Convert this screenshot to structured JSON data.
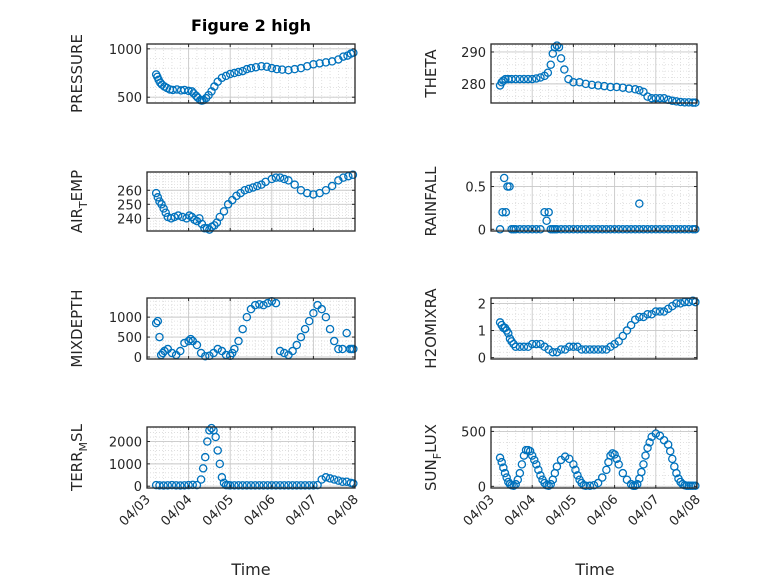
{
  "figure": {
    "title": "Figure 2 high",
    "xlabel": "Time",
    "x_tick_labels": [
      "04/03",
      "04/04",
      "04/05",
      "04/06",
      "04/07",
      "04/08"
    ],
    "marker_color": "#0072BD",
    "background": "#ffffff",
    "axes_color": "#262626"
  },
  "chart_data": [
    {
      "id": "pressure",
      "type": "scatter",
      "marker": "circle",
      "ylabel_parts": [
        "PRESSURE"
      ],
      "xlim": [
        0,
        5
      ],
      "ylim": [
        440,
        1050
      ],
      "yticks": [
        500,
        1000
      ],
      "x": [
        0.22,
        0.25,
        0.28,
        0.32,
        0.36,
        0.42,
        0.48,
        0.55,
        0.62,
        0.72,
        0.82,
        0.9,
        1.0,
        1.08,
        1.12,
        1.18,
        1.22,
        1.28,
        1.32,
        1.36,
        1.42,
        1.48,
        1.55,
        1.62,
        1.7,
        1.8,
        1.9,
        2.0,
        2.1,
        2.2,
        2.3,
        2.4,
        2.5,
        2.62,
        2.75,
        2.88,
        3.0,
        3.12,
        3.25,
        3.4,
        3.55,
        3.7,
        3.85,
        4.0,
        4.15,
        4.3,
        4.45,
        4.6,
        4.72,
        4.82,
        4.9,
        4.96
      ],
      "y": [
        735,
        710,
        680,
        650,
        630,
        610,
        595,
        580,
        575,
        580,
        570,
        575,
        565,
        560,
        540,
        515,
        495,
        470,
        465,
        470,
        490,
        520,
        560,
        610,
        660,
        700,
        720,
        740,
        750,
        760,
        770,
        790,
        800,
        810,
        820,
        815,
        800,
        790,
        785,
        780,
        790,
        800,
        820,
        840,
        850,
        860,
        870,
        890,
        920,
        930,
        950,
        960
      ]
    },
    {
      "id": "theta",
      "type": "scatter",
      "marker": "circle",
      "ylabel_parts": [
        "THETA"
      ],
      "xlim": [
        0,
        5
      ],
      "ylim": [
        274,
        292.5
      ],
      "yticks": [
        280,
        290
      ],
      "x": [
        0.22,
        0.26,
        0.3,
        0.35,
        0.42,
        0.5,
        0.6,
        0.7,
        0.8,
        0.9,
        1.0,
        1.1,
        1.2,
        1.3,
        1.38,
        1.45,
        1.5,
        1.55,
        1.6,
        1.65,
        1.7,
        1.78,
        1.88,
        2.0,
        2.15,
        2.3,
        2.45,
        2.6,
        2.75,
        2.9,
        3.05,
        3.2,
        3.35,
        3.5,
        3.6,
        3.7,
        3.8,
        3.9,
        4.0,
        4.1,
        4.2,
        4.3,
        4.4,
        4.5,
        4.6,
        4.7,
        4.8,
        4.9,
        4.96
      ],
      "y": [
        279.5,
        280.5,
        281,
        281.5,
        281.5,
        281.5,
        281.5,
        281.5,
        281.5,
        281.5,
        281.5,
        281.7,
        282,
        282.5,
        283.5,
        286,
        289.5,
        291.5,
        292,
        291.5,
        288,
        284.5,
        281.5,
        280.5,
        280.5,
        280,
        279.7,
        279.5,
        279.3,
        279,
        279,
        278.8,
        278.5,
        278.3,
        278,
        277.5,
        276,
        275.5,
        275.5,
        275.5,
        275.5,
        275,
        274.7,
        274.5,
        274.3,
        274.2,
        274.2,
        274.1,
        274.1
      ]
    },
    {
      "id": "air_temp",
      "type": "scatter",
      "marker": "circle",
      "ylabel_parts": [
        "AIR",
        "T",
        "EMP"
      ],
      "xlim": [
        0,
        5
      ],
      "ylim": [
        231,
        273
      ],
      "yticks": [
        240,
        250,
        260
      ],
      "x": [
        0.22,
        0.26,
        0.3,
        0.35,
        0.4,
        0.45,
        0.5,
        0.58,
        0.66,
        0.75,
        0.85,
        0.95,
        1.02,
        1.08,
        1.14,
        1.2,
        1.26,
        1.32,
        1.38,
        1.44,
        1.5,
        1.56,
        1.62,
        1.68,
        1.75,
        1.85,
        1.95,
        2.05,
        2.15,
        2.25,
        2.35,
        2.45,
        2.55,
        2.65,
        2.75,
        2.85,
        3.0,
        3.1,
        3.2,
        3.3,
        3.4,
        3.55,
        3.7,
        3.85,
        4.0,
        4.15,
        4.3,
        4.45,
        4.6,
        4.72,
        4.84,
        4.95
      ],
      "y": [
        258,
        255,
        252,
        250,
        247,
        244,
        241,
        240,
        241,
        242,
        241,
        240,
        242,
        241,
        239,
        238,
        240,
        236,
        233,
        233,
        232,
        234,
        235,
        237,
        241,
        245,
        250,
        253,
        256,
        258,
        260,
        261,
        262,
        263,
        264,
        266,
        268,
        269,
        269,
        268,
        267,
        264,
        260,
        258,
        257,
        258,
        260,
        263,
        267,
        269,
        270,
        271
      ]
    },
    {
      "id": "rainfall",
      "type": "scatter",
      "marker": "circle",
      "ylabel_parts": [
        "RAINFALL"
      ],
      "xlim": [
        0,
        5
      ],
      "ylim": [
        -0.02,
        0.67
      ],
      "yticks": [
        0,
        0.5
      ],
      "x": [
        0.22,
        0.28,
        0.32,
        0.36,
        0.4,
        0.45,
        0.5,
        0.55,
        0.6,
        0.7,
        0.8,
        0.9,
        1.0,
        1.1,
        1.2,
        1.3,
        1.35,
        1.4,
        1.45,
        1.5,
        1.55,
        1.6,
        1.7,
        1.8,
        1.9,
        2.0,
        2.1,
        2.2,
        2.3,
        2.4,
        2.5,
        2.6,
        2.7,
        2.8,
        2.9,
        3.0,
        3.1,
        3.2,
        3.3,
        3.4,
        3.5,
        3.6,
        3.7,
        3.8,
        3.9,
        4.0,
        4.1,
        4.2,
        4.3,
        4.4,
        4.5,
        4.6,
        4.7,
        4.8,
        4.9,
        4.96
      ],
      "y": [
        0,
        0.2,
        0.6,
        0.2,
        0.5,
        0.5,
        0,
        0,
        0,
        0,
        0,
        0,
        0,
        0,
        0,
        0.2,
        0.1,
        0.2,
        0,
        0,
        0,
        0,
        0,
        0,
        0,
        0,
        0,
        0,
        0,
        0,
        0,
        0,
        0,
        0,
        0,
        0,
        0,
        0,
        0,
        0,
        0,
        0,
        0,
        0,
        0,
        0,
        0,
        0,
        0,
        0,
        0,
        0,
        0,
        0,
        0,
        0
      ],
      "x_extra": [
        3.6
      ],
      "y_extra": [
        0.3
      ]
    },
    {
      "id": "mixdepth",
      "type": "scatter",
      "marker": "circle",
      "ylabel_parts": [
        "MIXDEPTH"
      ],
      "xlim": [
        0,
        5
      ],
      "ylim": [
        -50,
        1480
      ],
      "yticks": [
        0,
        500,
        1000
      ],
      "x": [
        0.22,
        0.26,
        0.3,
        0.34,
        0.38,
        0.42,
        0.5,
        0.6,
        0.7,
        0.8,
        0.9,
        1.0,
        1.05,
        1.1,
        1.2,
        1.3,
        1.4,
        1.5,
        1.6,
        1.7,
        1.8,
        1.9,
        2.0,
        2.05,
        2.1,
        2.2,
        2.3,
        2.4,
        2.5,
        2.6,
        2.7,
        2.8,
        2.9,
        3.0,
        3.1,
        3.2,
        3.3,
        3.4,
        3.5,
        3.6,
        3.7,
        3.8,
        3.9,
        4.0,
        4.1,
        4.2,
        4.3,
        4.4,
        4.5,
        4.6,
        4.7,
        4.8,
        4.88,
        4.92,
        4.96
      ],
      "y": [
        850,
        900,
        500,
        50,
        100,
        150,
        200,
        100,
        50,
        150,
        350,
        400,
        450,
        400,
        300,
        100,
        20,
        30,
        100,
        200,
        150,
        50,
        30,
        100,
        200,
        400,
        700,
        1000,
        1200,
        1300,
        1320,
        1300,
        1350,
        1400,
        1350,
        150,
        100,
        50,
        150,
        300,
        500,
        700,
        900,
        1100,
        1300,
        1200,
        1000,
        700,
        400,
        200,
        200,
        600,
        200,
        200,
        200
      ]
    },
    {
      "id": "h2omixra",
      "type": "scatter",
      "marker": "circle",
      "ylabel_parts": [
        "H2OMIXRA"
      ],
      "xlim": [
        0,
        5
      ],
      "ylim": [
        -0.05,
        2.2
      ],
      "yticks": [
        0,
        1,
        2
      ],
      "x": [
        0.22,
        0.26,
        0.3,
        0.34,
        0.38,
        0.42,
        0.46,
        0.5,
        0.55,
        0.6,
        0.7,
        0.8,
        0.9,
        1.0,
        1.1,
        1.2,
        1.3,
        1.4,
        1.5,
        1.6,
        1.7,
        1.8,
        1.9,
        2.0,
        2.1,
        2.2,
        2.3,
        2.4,
        2.5,
        2.6,
        2.7,
        2.8,
        2.9,
        3.0,
        3.1,
        3.2,
        3.3,
        3.4,
        3.5,
        3.6,
        3.7,
        3.8,
        3.9,
        4.0,
        4.1,
        4.2,
        4.3,
        4.4,
        4.5,
        4.6,
        4.7,
        4.8,
        4.9,
        4.96
      ],
      "y": [
        1.3,
        1.2,
        1.1,
        1.1,
        1.0,
        0.9,
        0.7,
        0.6,
        0.5,
        0.4,
        0.4,
        0.4,
        0.4,
        0.5,
        0.5,
        0.5,
        0.4,
        0.3,
        0.2,
        0.2,
        0.3,
        0.3,
        0.4,
        0.4,
        0.4,
        0.3,
        0.3,
        0.3,
        0.3,
        0.3,
        0.3,
        0.3,
        0.4,
        0.5,
        0.6,
        0.8,
        1.0,
        1.2,
        1.4,
        1.5,
        1.5,
        1.6,
        1.6,
        1.7,
        1.7,
        1.7,
        1.8,
        1.9,
        2.0,
        2.0,
        2.05,
        2.05,
        2.1,
        2.05
      ]
    },
    {
      "id": "terr_msl",
      "type": "scatter",
      "marker": "circle",
      "ylabel_parts": [
        "TERR",
        "M",
        "SL"
      ],
      "xlim": [
        0,
        5
      ],
      "ylim": [
        -80,
        2650
      ],
      "yticks": [
        0,
        1000,
        2000
      ],
      "x": [
        0.22,
        0.3,
        0.4,
        0.5,
        0.6,
        0.7,
        0.8,
        0.9,
        1.0,
        1.1,
        1.2,
        1.3,
        1.35,
        1.4,
        1.45,
        1.5,
        1.55,
        1.6,
        1.65,
        1.7,
        1.75,
        1.8,
        1.85,
        1.9,
        1.95,
        2.0,
        2.1,
        2.2,
        2.3,
        2.4,
        2.5,
        2.6,
        2.7,
        2.8,
        2.9,
        3.0,
        3.1,
        3.2,
        3.3,
        3.4,
        3.5,
        3.6,
        3.7,
        3.8,
        3.9,
        4.0,
        4.1,
        4.2,
        4.3,
        4.4,
        4.5,
        4.6,
        4.7,
        4.8,
        4.9,
        4.96
      ],
      "y": [
        50,
        40,
        30,
        40,
        50,
        40,
        30,
        40,
        50,
        60,
        50,
        300,
        800,
        1300,
        2000,
        2500,
        2600,
        2500,
        2200,
        1600,
        1000,
        400,
        150,
        50,
        50,
        40,
        40,
        40,
        40,
        40,
        40,
        40,
        40,
        40,
        40,
        40,
        40,
        40,
        40,
        40,
        40,
        40,
        40,
        40,
        40,
        40,
        50,
        300,
        400,
        350,
        300,
        250,
        200,
        200,
        150,
        120
      ]
    },
    {
      "id": "sun_flux",
      "type": "scatter",
      "marker": "circle",
      "ylabel_parts": [
        "SUN",
        "F",
        "LUX"
      ],
      "xlim": [
        0,
        5
      ],
      "ylim": [
        -15,
        540
      ],
      "yticks": [
        0,
        500
      ],
      "x": [
        0.22,
        0.26,
        0.3,
        0.34,
        0.38,
        0.42,
        0.46,
        0.5,
        0.55,
        0.6,
        0.65,
        0.7,
        0.75,
        0.8,
        0.85,
        0.9,
        0.95,
        1.0,
        1.05,
        1.1,
        1.15,
        1.2,
        1.25,
        1.3,
        1.35,
        1.4,
        1.45,
        1.5,
        1.55,
        1.6,
        1.7,
        1.8,
        1.9,
        2.0,
        2.05,
        2.1,
        2.15,
        2.2,
        2.25,
        2.3,
        2.4,
        2.5,
        2.6,
        2.7,
        2.8,
        2.85,
        2.9,
        2.95,
        3.0,
        3.05,
        3.1,
        3.2,
        3.3,
        3.4,
        3.45,
        3.5,
        3.55,
        3.6,
        3.65,
        3.7,
        3.75,
        3.8,
        3.85,
        3.9,
        4.0,
        4.1,
        4.2,
        4.3,
        4.35,
        4.4,
        4.45,
        4.5,
        4.55,
        4.6,
        4.65,
        4.7,
        4.75,
        4.8,
        4.85,
        4.9,
        4.96
      ],
      "y": [
        260,
        220,
        170,
        120,
        80,
        40,
        20,
        10,
        5,
        20,
        60,
        120,
        200,
        280,
        330,
        330,
        320,
        280,
        240,
        200,
        150,
        100,
        60,
        30,
        10,
        5,
        20,
        60,
        120,
        180,
        240,
        270,
        250,
        200,
        150,
        100,
        60,
        30,
        10,
        5,
        5,
        10,
        30,
        80,
        150,
        220,
        280,
        300,
        290,
        250,
        200,
        120,
        60,
        20,
        5,
        5,
        20,
        70,
        130,
        200,
        280,
        350,
        400,
        450,
        480,
        460,
        420,
        380,
        320,
        250,
        180,
        120,
        70,
        40,
        20,
        10,
        5,
        5,
        5,
        5,
        5
      ]
    }
  ]
}
